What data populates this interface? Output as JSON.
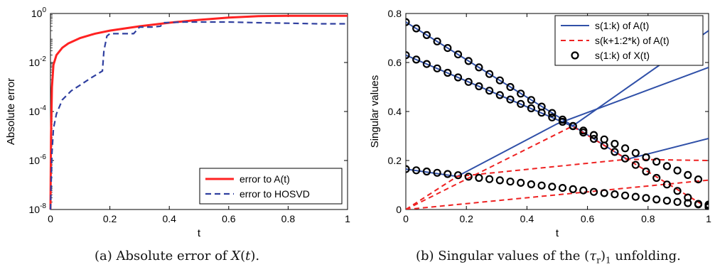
{
  "chart_data": [
    {
      "type": "line",
      "title": "",
      "xlabel": "t",
      "ylabel": "Absolute error",
      "xlim": [
        0,
        1
      ],
      "ylim": [
        1e-08,
        1
      ],
      "yscale": "log",
      "grid": false,
      "legend_position": "bottom-right",
      "x_ticks": [
        "0",
        "0.2",
        "0.4",
        "0.6",
        "0.8",
        "1"
      ],
      "y_ticks": [
        {
          "base": "10",
          "exp": "-8",
          "value": 1e-08
        },
        {
          "base": "10",
          "exp": "-6",
          "value": 1e-06
        },
        {
          "base": "10",
          "exp": "-4",
          "value": 0.0001
        },
        {
          "base": "10",
          "exp": "-2",
          "value": 0.01
        },
        {
          "base": "10",
          "exp": "0",
          "value": 1
        }
      ],
      "series": [
        {
          "name": "error to A(t)",
          "color": "#ff2222",
          "style": "solid",
          "x": [
            0,
            0.002,
            0.005,
            0.01,
            0.02,
            0.04,
            0.06,
            0.1,
            0.15,
            0.2,
            0.3,
            0.4,
            0.5,
            0.6,
            0.7,
            0.8,
            0.9,
            1.0
          ],
          "y": [
            1e-08,
            1e-05,
            0.001,
            0.008,
            0.02,
            0.04,
            0.06,
            0.1,
            0.15,
            0.2,
            0.3,
            0.42,
            0.55,
            0.68,
            0.78,
            0.8,
            0.8,
            0.8
          ]
        },
        {
          "name": "error to HOSVD",
          "color": "#3040a0",
          "style": "dashed",
          "x": [
            0,
            0.005,
            0.01,
            0.02,
            0.04,
            0.07,
            0.1,
            0.14,
            0.175,
            0.18,
            0.19,
            0.2,
            0.27,
            0.28,
            0.3,
            0.34,
            0.37,
            0.38,
            0.45,
            0.55,
            0.6,
            0.7,
            0.8,
            0.9,
            1.0
          ],
          "y": [
            1e-08,
            2e-06,
            2e-05,
            8e-05,
            0.0003,
            0.0007,
            0.0012,
            0.0025,
            0.0045,
            0.03,
            0.12,
            0.15,
            0.15,
            0.15,
            0.28,
            0.28,
            0.3,
            0.42,
            0.45,
            0.45,
            0.45,
            0.42,
            0.4,
            0.38,
            0.38
          ]
        }
      ]
    },
    {
      "type": "line",
      "title": "",
      "xlabel": "t",
      "ylabel": "Singular values",
      "xlim": [
        0,
        1
      ],
      "ylim": [
        0,
        0.8
      ],
      "grid": false,
      "legend_position": "top-right",
      "x_ticks": [
        "0",
        "0.2",
        "0.4",
        "0.6",
        "0.8",
        "1"
      ],
      "y_ticks": [
        "0",
        "0.2",
        "0.4",
        "0.6",
        "0.8"
      ],
      "series": [
        {
          "name": "s(1:k) of A(t)",
          "color": "#3050a8",
          "style": "solid",
          "lines": [
            {
              "x": [
                0,
                0.73,
                1.0
              ],
              "y": [
                0.765,
                0.205,
                0.29
              ]
            },
            {
              "x": [
                0,
                0.55,
                1.0
              ],
              "y": [
                0.63,
                0.34,
                0.73
              ]
            },
            {
              "x": [
                0,
                0.17,
                0.5,
                1.0
              ],
              "y": [
                0.165,
                0.135,
                0.35,
                0.58
              ]
            }
          ]
        },
        {
          "name": "s(k+1:2*k) of A(t)",
          "color": "#ee2222",
          "style": "dashed",
          "lines": [
            {
              "x": [
                0,
                0.55,
                1.0
              ],
              "y": [
                0,
                0.34,
                0.005
              ]
            },
            {
              "x": [
                0,
                0.17,
                0.73,
                1.0
              ],
              "y": [
                0,
                0.135,
                0.205,
                0.2
              ]
            },
            {
              "x": [
                0,
                1.0
              ],
              "y": [
                0,
                0.12
              ]
            }
          ]
        },
        {
          "name": "s(1:k) of X(t)",
          "color": "#000000",
          "style": "circles",
          "markers": [
            {
              "x": [
                0,
                0.0345,
                0.069,
                0.1035,
                0.138,
                0.1725,
                0.207,
                0.2415,
                0.276,
                0.3105,
                0.345,
                0.3795,
                0.414,
                0.4485,
                0.483,
                0.5175,
                0.552,
                0.5865,
                0.621,
                0.6555,
                0.69,
                0.7245,
                0.759,
                0.7935,
                0.828,
                0.8625,
                0.897,
                0.9315,
                0.966,
                1.0
              ],
              "y": [
                0.765,
                0.739,
                0.712,
                0.686,
                0.659,
                0.633,
                0.606,
                0.58,
                0.553,
                0.527,
                0.5,
                0.473,
                0.447,
                0.42,
                0.394,
                0.367,
                0.341,
                0.314,
                0.288,
                0.261,
                0.235,
                0.208,
                0.182,
                0.155,
                0.129,
                0.102,
                0.076,
                0.049,
                0.023,
                0.01
              ]
            },
            {
              "x": [
                0,
                0.0345,
                0.069,
                0.1035,
                0.138,
                0.1725,
                0.207,
                0.2415,
                0.276,
                0.3105,
                0.345,
                0.3795,
                0.414,
                0.4485,
                0.483,
                0.5175,
                0.552,
                0.5865,
                0.621,
                0.6555,
                0.69,
                0.7245,
                0.759,
                0.7935,
                0.828,
                0.8625,
                0.897,
                0.9315,
                0.966,
                1.0
              ],
              "y": [
                0.63,
                0.612,
                0.594,
                0.576,
                0.558,
                0.539,
                0.521,
                0.503,
                0.485,
                0.467,
                0.449,
                0.431,
                0.413,
                0.395,
                0.376,
                0.358,
                0.34,
                0.322,
                0.304,
                0.286,
                0.268,
                0.25,
                0.231,
                0.213,
                0.195,
                0.177,
                0.159,
                0.141,
                0.123,
                0.02
              ]
            },
            {
              "x": [
                0,
                0.0345,
                0.069,
                0.1035,
                0.138,
                0.1725,
                0.207,
                0.2415,
                0.276,
                0.3105,
                0.345,
                0.3795,
                0.414,
                0.4485,
                0.483,
                0.5175,
                0.552,
                0.5865,
                0.621,
                0.6555,
                0.69,
                0.7245,
                0.759,
                0.7935,
                0.828,
                0.8625,
                0.897,
                0.9315,
                0.966,
                1.0
              ],
              "y": [
                0.165,
                0.16,
                0.155,
                0.15,
                0.145,
                0.14,
                0.134,
                0.129,
                0.124,
                0.119,
                0.114,
                0.109,
                0.103,
                0.098,
                0.093,
                0.088,
                0.083,
                0.078,
                0.072,
                0.067,
                0.062,
                0.057,
                0.052,
                0.047,
                0.041,
                0.036,
                0.031,
                0.026,
                0.021,
                0.015
              ]
            }
          ]
        }
      ]
    }
  ],
  "captions": {
    "left": "(a) Absolute error of X(t).",
    "right": "(b) Singular values of the (τr)1 unfolding."
  }
}
